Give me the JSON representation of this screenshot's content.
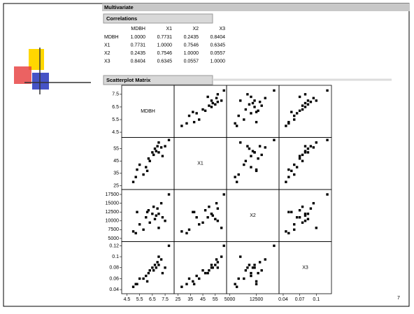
{
  "slide": {
    "page_number": "7"
  },
  "report": {
    "title": "Multivariate",
    "correlations": {
      "title": "Correlations",
      "columns": [
        "MDBH",
        "X1",
        "X2",
        "X3"
      ],
      "rows": [
        {
          "label": "MDBH",
          "values": [
            "1.0000",
            "0.7731",
            "0.2435",
            "0.8404"
          ]
        },
        {
          "label": "X1",
          "values": [
            "0.7731",
            "1.0000",
            "0.7546",
            "0.6345"
          ]
        },
        {
          "label": "X2",
          "values": [
            "0.2435",
            "0.7546",
            "1.0000",
            "0.0557"
          ]
        },
        {
          "label": "X3",
          "values": [
            "0.8404",
            "0.6345",
            "0.0557",
            "1.0000"
          ]
        }
      ]
    }
  },
  "chart_data": {
    "type": "scatter-matrix",
    "title": "Scatterplot Matrix",
    "variables": [
      {
        "name": "MDBH",
        "lim": [
          4.2,
          8.1
        ],
        "yticks": [
          4.5,
          5.5,
          6.5,
          7.5
        ],
        "xticks": [
          4.5,
          5.5,
          6.5,
          7.5
        ],
        "values": [
          5.0,
          5.2,
          5.3,
          5.8,
          6.0,
          6.2,
          6.3,
          6.5,
          6.6,
          6.7,
          6.8,
          6.9,
          7.0,
          7.0,
          7.2,
          7.3,
          7.5,
          7.8,
          6.1,
          5.5
        ]
      },
      {
        "name": "X1",
        "lim": [
          23,
          63
        ],
        "yticks": [
          25,
          35,
          45,
          55
        ],
        "xticks": [
          25,
          35,
          45,
          55
        ],
        "values": [
          28,
          32,
          38,
          34,
          40,
          47,
          45,
          52,
          50,
          55,
          53,
          57,
          52,
          60,
          56,
          49,
          57,
          62,
          37,
          42
        ]
      },
      {
        "name": "X2",
        "lim": [
          4500,
          18500
        ],
        "yticks": [
          5000,
          7500,
          10000,
          12500,
          15000,
          17500
        ],
        "xticks": [
          5000,
          12500
        ],
        "values": [
          7000,
          6500,
          12500,
          7500,
          11000,
          13000,
          9500,
          12000,
          14000,
          10500,
          11500,
          13500,
          12000,
          8000,
          15000,
          11000,
          10000,
          17500,
          12500,
          9000
        ]
      },
      {
        "name": "X3",
        "lim": [
          0.035,
          0.125
        ],
        "yticks": [
          0.04,
          0.06,
          0.08,
          0.1,
          0.12
        ],
        "xticks": [
          0.04,
          0.07,
          0.1
        ],
        "values": [
          0.045,
          0.05,
          0.05,
          0.06,
          0.065,
          0.07,
          0.075,
          0.08,
          0.075,
          0.085,
          0.08,
          0.09,
          0.085,
          0.1,
          0.095,
          0.07,
          0.08,
          0.12,
          0.055,
          0.06
        ]
      }
    ]
  }
}
